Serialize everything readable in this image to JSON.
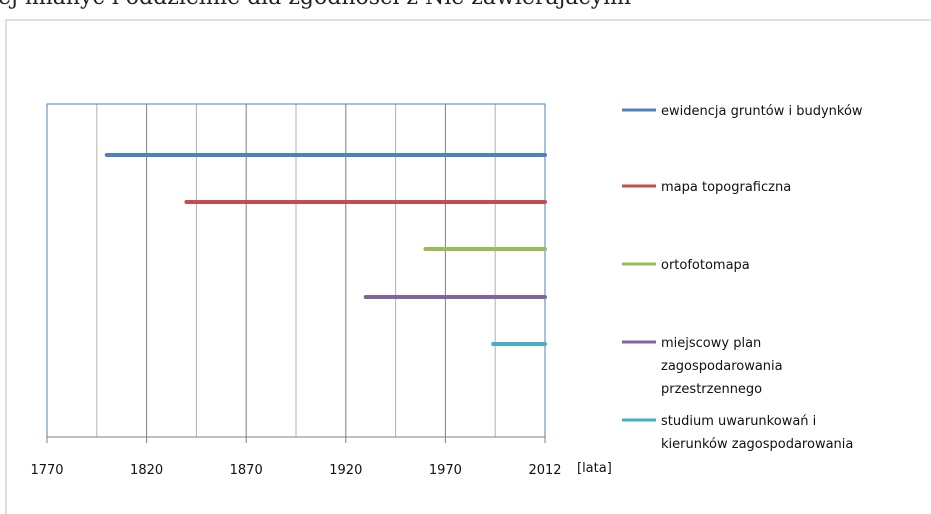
{
  "top_text": "ej mianyc  i  oddzielnie  dla zgodności z Nie zawierajacymi",
  "chart_data": {
    "type": "bar",
    "orientation": "horizontal-range",
    "xlim": [
      1770,
      2012
    ],
    "xticks": [
      1770,
      1820,
      1870,
      1920,
      1970,
      2012
    ],
    "tick_labels": [
      "1770",
      "1820",
      "1870",
      "1920",
      "1970",
      "2012"
    ],
    "xlabel": "[lata]",
    "grid": true,
    "legend_position": "right",
    "series": [
      {
        "name": "ewidencja gruntów i budynków",
        "start": 1800,
        "end": 2012,
        "color": "#4f81bd"
      },
      {
        "name": "mapa topograficzna",
        "start": 1840,
        "end": 2012,
        "color": "#c0504d"
      },
      {
        "name": "ortofotomapa",
        "start": 1960,
        "end": 2012,
        "color": "#9bbb59"
      },
      {
        "name": "miejscowy plan zagospodarowania przestrzennego",
        "start": 1930,
        "end": 2012,
        "color": "#8064a2"
      },
      {
        "name": "studium uwarunkowań i kierunków zagospodarowania",
        "start": 1994,
        "end": 2012,
        "color": "#4bacc6"
      }
    ],
    "legend_lines": [
      [
        "ewidencja gruntów i budynków"
      ],
      [
        "mapa topograficzna"
      ],
      [
        "ortofotomapa"
      ],
      [
        "miejscowy plan",
        "zagospodarowania",
        "przestrzennego"
      ],
      [
        "studium uwarunkowań i",
        "kierunków zagospodarowania"
      ]
    ]
  }
}
